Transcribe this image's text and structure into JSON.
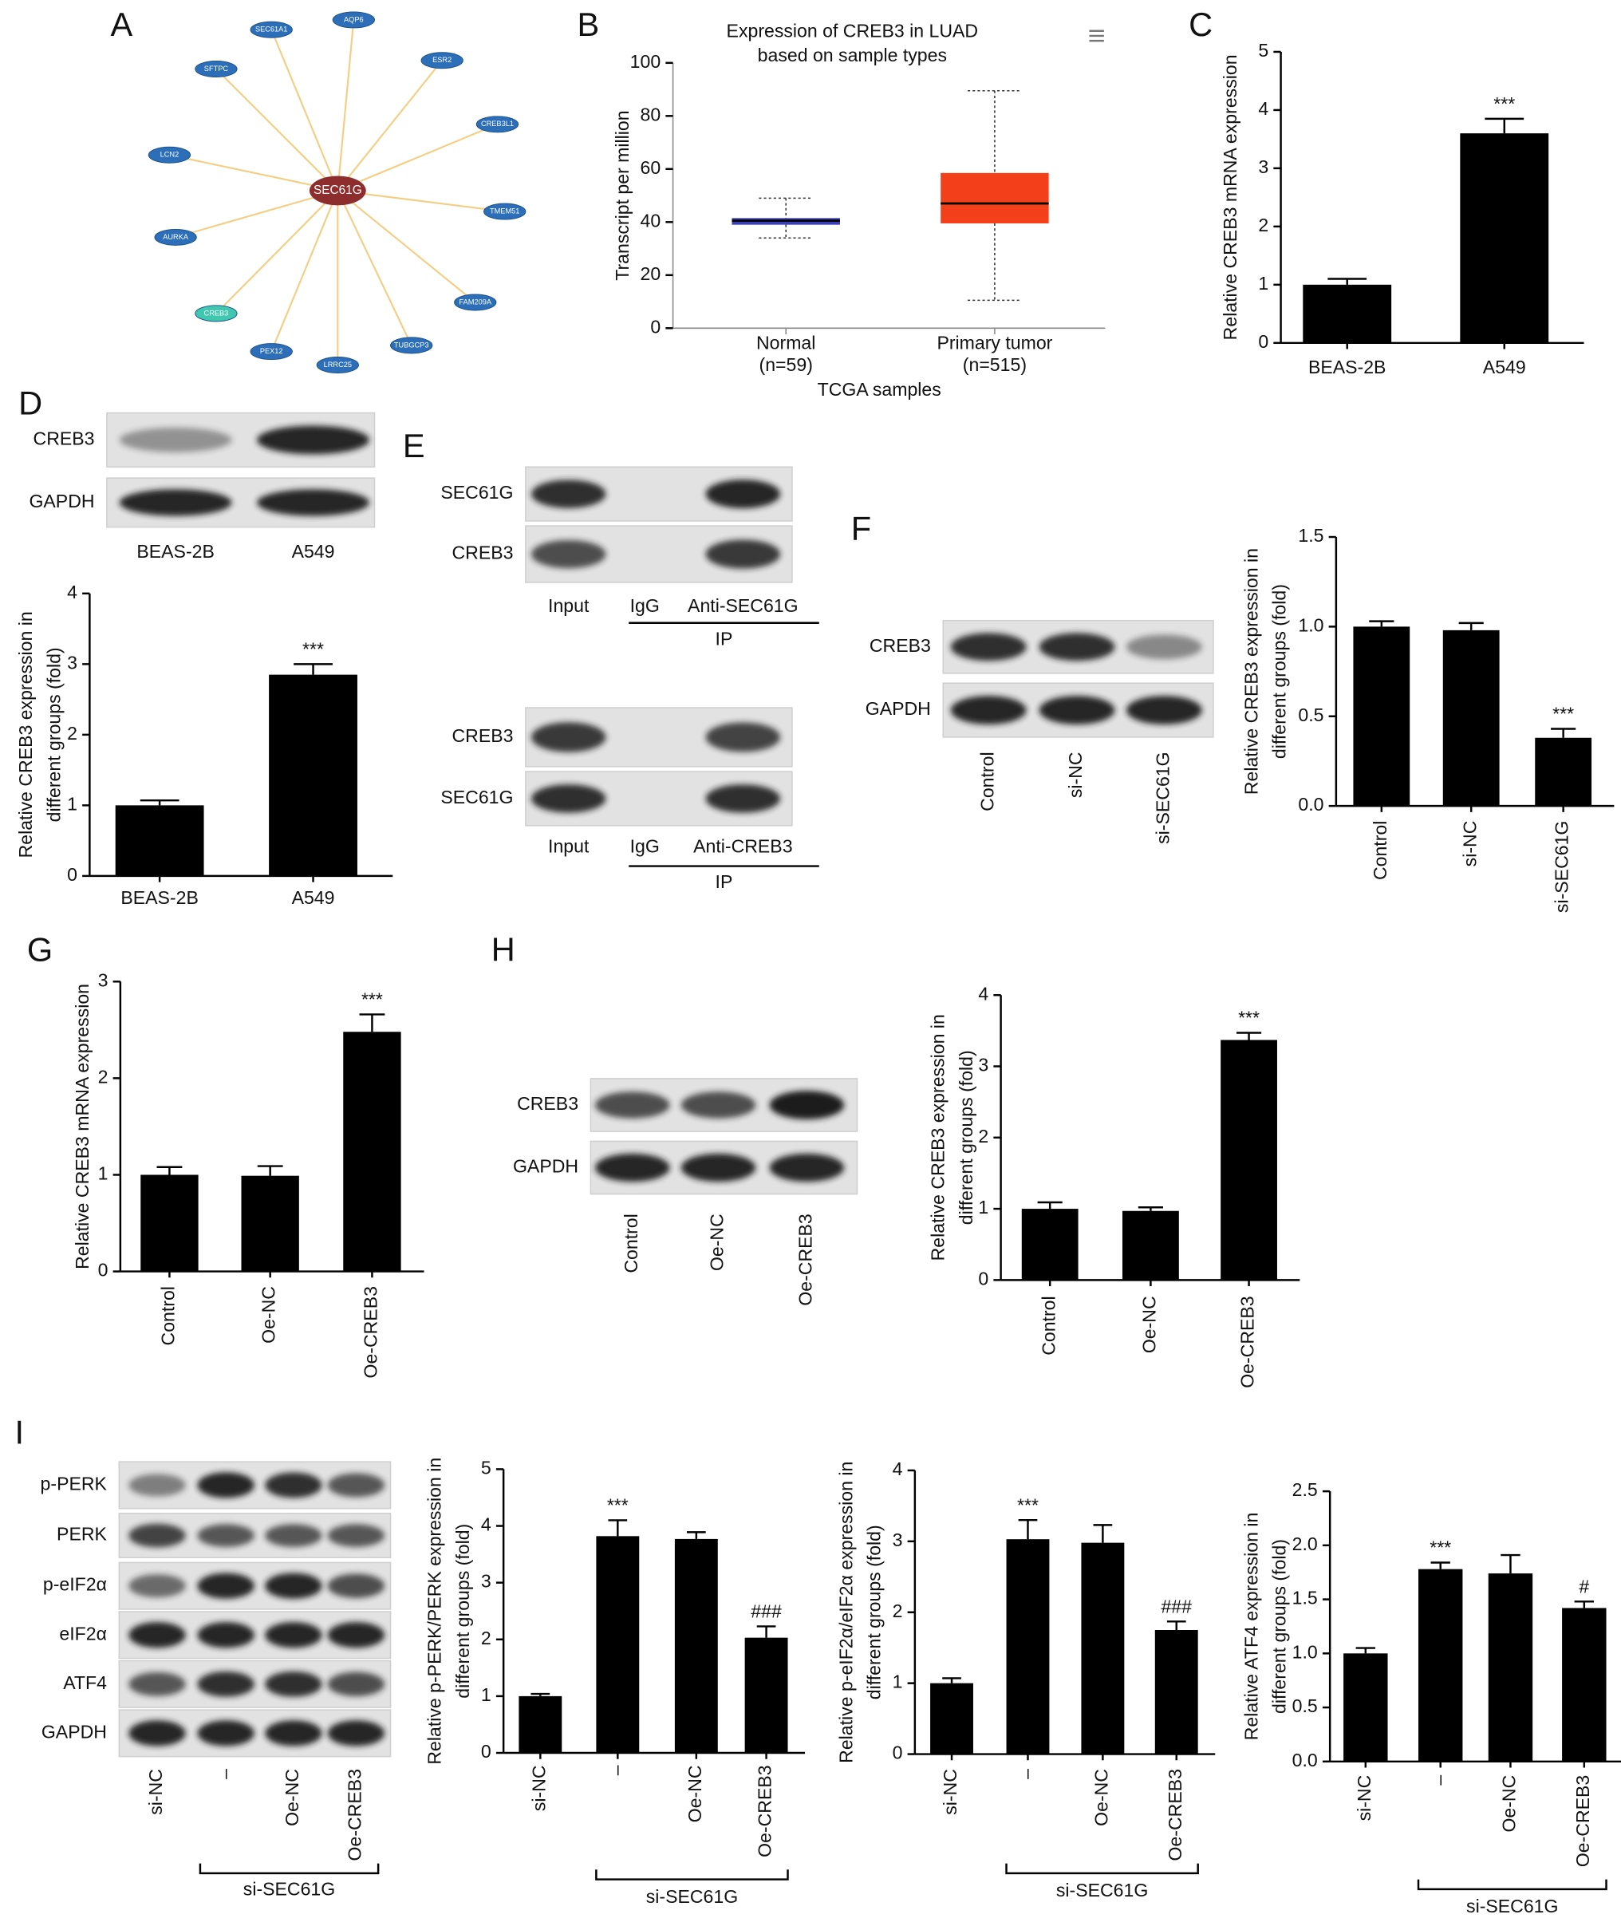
{
  "panel_labels": [
    "A",
    "B",
    "C",
    "D",
    "E",
    "F",
    "G",
    "H",
    "I"
  ],
  "network": {
    "center": "SEC61G",
    "nodes": [
      "SEC61A1",
      "AQP6",
      "ESR2",
      "CREB3L1",
      "TMEM51",
      "FAM209A",
      "TUBGCP3",
      "LRRC25",
      "PEX12",
      "CREB3",
      "AURKA",
      "LCN2",
      "SFTPC"
    ]
  },
  "blots": [
    {
      "rows": [
        "CREB3",
        "GAPDH"
      ],
      "lanes": [
        "BEAS-2B",
        "A549"
      ]
    },
    {
      "rows": [
        "SEC61G",
        "CREB3"
      ],
      "lanes": [
        "Input",
        "IgG",
        "Anti-SEC61G"
      ],
      "group": "IP"
    },
    {
      "rows": [
        "CREB3",
        "SEC61G"
      ],
      "lanes": [
        "Input",
        "IgG",
        "Anti-CREB3"
      ],
      "group": "IP"
    },
    {
      "rows": [
        "CREB3",
        "GAPDH"
      ],
      "lanes": [
        "Control",
        "si-NC",
        "si-SEC61G"
      ]
    },
    {
      "rows": [
        "CREB3",
        "GAPDH"
      ],
      "lanes": [
        "Control",
        "Oe-NC",
        "Oe-CREB3"
      ]
    },
    {
      "rows": [
        "p-PERK",
        "PERK",
        "p-eIF2α",
        "eIF2α",
        "ATF4",
        "GAPDH"
      ],
      "lanes": [
        "si-NC",
        "–",
        "Oe-NC",
        "Oe-CREB3"
      ],
      "group": "si-SEC61G"
    }
  ],
  "chart_data": [
    {
      "type": "box",
      "title": [
        "Expression of CREB3 in LUAD",
        "based on sample types"
      ],
      "categories": [
        "Normal",
        "Primary tumor"
      ],
      "category_notes": [
        "(n=59)",
        "(n=515)"
      ],
      "xlabel": "TCGA samples",
      "ylabel": "Transcript per million",
      "boxes": [
        {
          "min": 34,
          "q1": 39,
          "median": 40.5,
          "q3": 41.5,
          "max": 49
        },
        {
          "min": 10.5,
          "q1": 39.5,
          "median": 47,
          "q3": 58.5,
          "max": 89.5
        }
      ],
      "colors": [
        "#3a3fb5",
        "#f4401a"
      ],
      "ylim": [
        0,
        100
      ],
      "yticks": [
        0,
        20,
        40,
        60,
        80,
        100
      ]
    },
    {
      "type": "bar",
      "ylabel": [
        "Relative CREB3 mRNA expression"
      ],
      "categories": [
        "BEAS-2B",
        "A549"
      ],
      "values": [
        1,
        3.6
      ],
      "errors": [
        0.1,
        0.25
      ],
      "annotations": [
        null,
        "***"
      ],
      "color": "#000000",
      "ylim": [
        0,
        5
      ],
      "yticks": [
        0,
        1,
        2,
        3,
        4,
        5
      ]
    },
    {
      "type": "bar",
      "ylabel": [
        "Relative CREB3 expression in",
        "different groups (fold)"
      ],
      "categories": [
        "BEAS-2B",
        "A549"
      ],
      "values": [
        1,
        2.85
      ],
      "errors": [
        0.07,
        0.15
      ],
      "annotations": [
        null,
        "***"
      ],
      "color": "#000000",
      "ylim": [
        0,
        4
      ],
      "yticks": [
        0,
        1,
        2,
        3,
        4
      ]
    },
    {
      "type": "bar",
      "ylabel": [
        "Relative CREB3 expression in",
        "different groups (fold)"
      ],
      "categories": [
        "Control",
        "si-NC",
        "si-SEC61G"
      ],
      "values": [
        1.0,
        0.98,
        0.38
      ],
      "errors": [
        0.03,
        0.04,
        0.05
      ],
      "annotations": [
        null,
        null,
        "***"
      ],
      "color": "#000000",
      "ylim": [
        0,
        1.5
      ],
      "yticks": [
        {
          "value": 0,
          "label": "0.0"
        },
        0.5,
        {
          "value": 1,
          "label": "1.0"
        },
        1.5
      ]
    },
    {
      "type": "bar",
      "ylabel": [
        "Relative CREB3 mRNA expression"
      ],
      "categories": [
        "Control",
        "Oe-NC",
        "Oe-CREB3"
      ],
      "values": [
        1,
        0.99,
        2.48
      ],
      "errors": [
        0.08,
        0.1,
        0.18
      ],
      "annotations": [
        null,
        null,
        "***"
      ],
      "color": "#000000",
      "ylim": [
        0,
        3
      ],
      "yticks": [
        0,
        1,
        2,
        3
      ]
    },
    {
      "type": "bar",
      "ylabel": [
        "Relative CREB3 expression in",
        "different groups (fold)"
      ],
      "categories": [
        "Control",
        "Oe-NC",
        "Oe-CREB3"
      ],
      "values": [
        1,
        0.97,
        3.37
      ],
      "errors": [
        0.09,
        0.05,
        0.1
      ],
      "annotations": [
        null,
        null,
        "***"
      ],
      "color": "#000000",
      "ylim": [
        0,
        4
      ],
      "yticks": [
        0,
        1,
        2,
        3,
        4
      ]
    },
    {
      "type": "bar",
      "ylabel": [
        "Relative p-PERK/PERK expression in",
        "different groups (fold)"
      ],
      "categories": [
        "si-NC",
        "–",
        "Oe-NC",
        "Oe-CREB3"
      ],
      "group_label": "si-SEC61G",
      "values": [
        1,
        3.82,
        3.77,
        2.03
      ],
      "errors": [
        0.04,
        0.28,
        0.12,
        0.2
      ],
      "annotations": [
        null,
        "***",
        null,
        "###"
      ],
      "color": "#000000",
      "ylim": [
        0,
        5
      ],
      "yticks": [
        0,
        1,
        2,
        3,
        4,
        5
      ]
    },
    {
      "type": "bar",
      "ylabel": [
        "Relative p-eIF2α/eIF2α expression in",
        "different groups (fold)"
      ],
      "categories": [
        "si-NC",
        "–",
        "Oe-NC",
        "Oe-CREB3"
      ],
      "group_label": "si-SEC61G",
      "values": [
        1,
        3.03,
        2.98,
        1.75
      ],
      "errors": [
        0.07,
        0.27,
        0.25,
        0.12
      ],
      "annotations": [
        null,
        "***",
        null,
        "###"
      ],
      "color": "#000000",
      "ylim": [
        0,
        4
      ],
      "yticks": [
        0,
        1,
        2,
        3,
        4
      ]
    },
    {
      "type": "bar",
      "ylabel": [
        "Relative ATF4 expression in",
        "different groups (fold)"
      ],
      "categories": [
        "si-NC",
        "–",
        "Oe-NC",
        "Oe-CREB3"
      ],
      "group_label": "si-SEC61G",
      "values": [
        1,
        1.78,
        1.74,
        1.42
      ],
      "errors": [
        0.05,
        0.06,
        0.17,
        0.06
      ],
      "annotations": [
        null,
        "***",
        null,
        "#"
      ],
      "color": "#000000",
      "ylim": [
        0,
        2.5
      ],
      "yticks": [
        {
          "value": 0,
          "label": "0.0"
        },
        0.5,
        {
          "value": 1,
          "label": "1.0"
        },
        1.5,
        {
          "value": 2,
          "label": "2.0"
        },
        2.5
      ]
    }
  ]
}
